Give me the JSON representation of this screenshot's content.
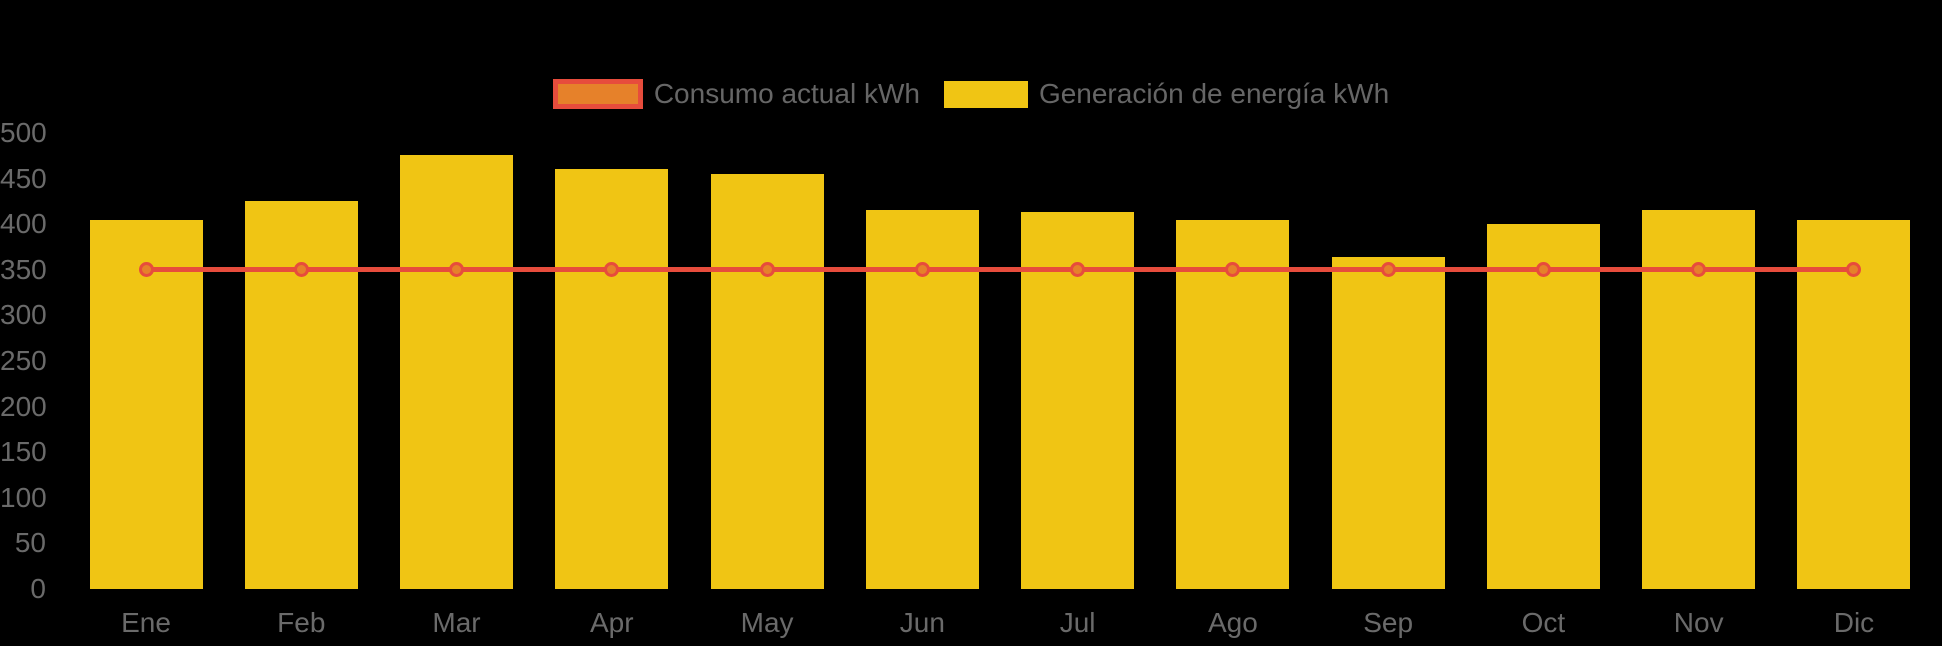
{
  "chart": {
    "background": "#000000",
    "axis_label_color": "#6A6A6A",
    "legend_label_color": "#666666"
  },
  "legend": {
    "items": [
      {
        "label": "Consumo actual kWh",
        "swatch_fill": "#E6812A",
        "swatch_border": "#E74C3C"
      },
      {
        "label": "Generación de energía kWh",
        "swatch_fill": "#F0C514",
        "swatch_border": null
      }
    ]
  },
  "chart_data": {
    "type": "combo",
    "categories": [
      "Ene",
      "Feb",
      "Mar",
      "Apr",
      "May",
      "Jun",
      "Jul",
      "Ago",
      "Sep",
      "Oct",
      "Nov",
      "Dic"
    ],
    "series": [
      {
        "name": "Consumo actual kWh",
        "type": "line",
        "color": "#E74C3C",
        "point_fill": "#E6812A",
        "values": [
          350,
          350,
          350,
          350,
          350,
          350,
          350,
          350,
          350,
          350,
          350,
          350
        ]
      },
      {
        "name": "Generación de energía kWh",
        "type": "bar",
        "color": "#F0C514",
        "values": [
          405,
          425,
          476,
          460,
          455,
          416,
          413,
          405,
          364,
          400,
          416,
          405
        ]
      }
    ],
    "title": "",
    "xlabel": "",
    "ylabel": "",
    "ylim": [
      0,
      500
    ],
    "ystep": 50,
    "ytick_labels": [
      "0",
      "50",
      "100",
      "150",
      "200",
      "250",
      "300",
      "350",
      "400",
      "450",
      "500"
    ],
    "grid": false,
    "legend_position": "top"
  }
}
